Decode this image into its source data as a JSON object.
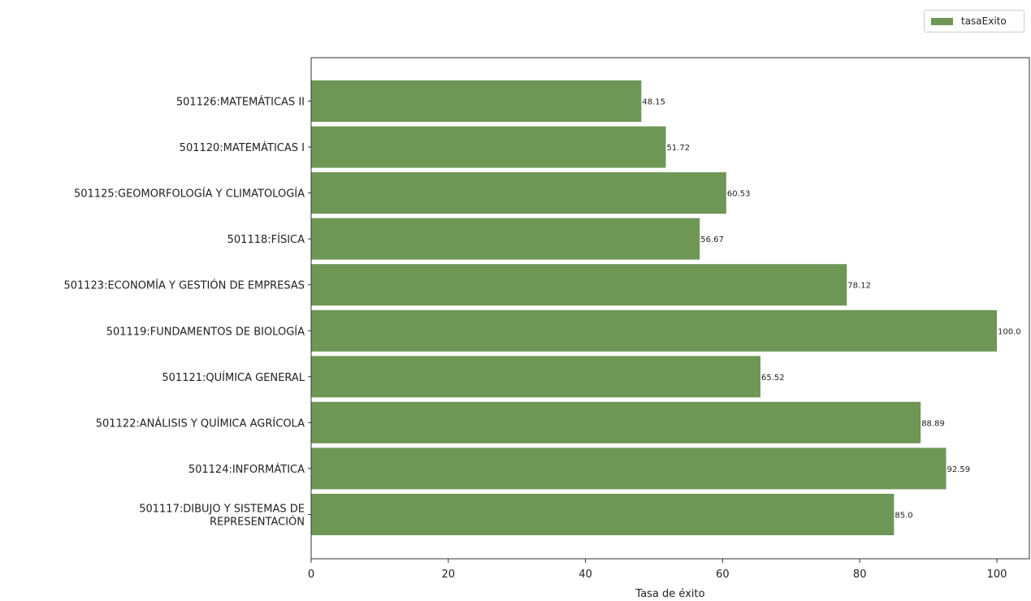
{
  "chart_data": {
    "type": "bar",
    "orientation": "horizontal",
    "title": "",
    "xlabel": "Tasa de éxito",
    "ylabel": "",
    "xlim": [
      0,
      105
    ],
    "xticks": [
      0,
      20,
      40,
      60,
      80,
      100
    ],
    "grid": false,
    "legend_position": "top-right",
    "bar_color": "#6e9655",
    "categories": [
      "501126:MATEMÁTICAS II",
      "501120:MATEMÁTICAS I",
      "501125:GEOMORFOLOGÍA Y CLIMATOLOGÍA",
      "501118:FÍSICA",
      "501123:ECONOMÍA Y GESTIÓN DE EMPRESAS",
      "501119:FUNDAMENTOS DE BIOLOGÍA",
      "501121:QUÍMICA GENERAL",
      "501122:ANÁLISIS Y QUÍMICA AGRÍCOLA",
      "501124:INFORMÁTICA",
      "501117:DIBUJO Y SISTEMAS DE\nREPRESENTACIÓN"
    ],
    "series": [
      {
        "name": "tasaExito",
        "values": [
          48.15,
          51.72,
          60.53,
          56.67,
          78.12,
          100.0,
          65.52,
          88.89,
          92.59,
          85.0
        ],
        "labels": [
          "48.15",
          "51.72",
          "60.53",
          "56.67",
          "78.12",
          "100.0",
          "65.52",
          "88.89",
          "92.59",
          "85.0"
        ]
      }
    ]
  }
}
